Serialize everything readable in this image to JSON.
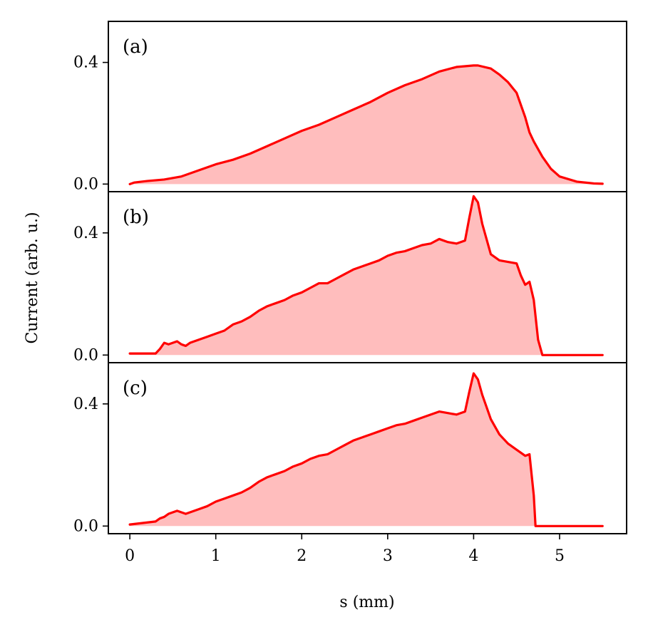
{
  "chart_data": {
    "type": "area",
    "xlabel": "s (mm)",
    "ylabel": "Current (arb. u.)",
    "xlim": [
      -0.25,
      5.78
    ],
    "x_ticks": [
      "0",
      "1",
      "2",
      "3",
      "4",
      "5"
    ],
    "x_tick_values": [
      0,
      1,
      2,
      3,
      4,
      5
    ],
    "y_ticks": [
      "0.0",
      "0.4"
    ],
    "y_tick_values": [
      0.0,
      0.4
    ],
    "colors": {
      "line": "#ff0000",
      "fill": "#ffbdbd"
    },
    "panels": [
      {
        "label": "(a)",
        "ylim": [
          -0.025,
          0.535
        ],
        "x": [
          0,
          0.05,
          0.2,
          0.4,
          0.6,
          0.8,
          1.0,
          1.2,
          1.4,
          1.6,
          1.8,
          2.0,
          2.2,
          2.4,
          2.6,
          2.8,
          3.0,
          3.2,
          3.4,
          3.6,
          3.8,
          4.0,
          4.05,
          4.2,
          4.3,
          4.4,
          4.5,
          4.6,
          4.65,
          4.7,
          4.8,
          4.9,
          5.0,
          5.2,
          5.4,
          5.5
        ],
        "y": [
          0.0,
          0.005,
          0.01,
          0.015,
          0.025,
          0.045,
          0.065,
          0.08,
          0.1,
          0.125,
          0.15,
          0.175,
          0.195,
          0.22,
          0.245,
          0.27,
          0.3,
          0.325,
          0.345,
          0.37,
          0.385,
          0.39,
          0.39,
          0.38,
          0.36,
          0.335,
          0.3,
          0.22,
          0.17,
          0.14,
          0.09,
          0.05,
          0.025,
          0.008,
          0.002,
          0.001
        ]
      },
      {
        "label": "(b)",
        "ylim": [
          -0.025,
          0.535
        ],
        "x": [
          0,
          0.3,
          0.35,
          0.4,
          0.45,
          0.5,
          0.55,
          0.6,
          0.65,
          0.7,
          0.8,
          0.9,
          1.0,
          1.1,
          1.2,
          1.3,
          1.4,
          1.5,
          1.6,
          1.7,
          1.8,
          1.9,
          2.0,
          2.1,
          2.2,
          2.3,
          2.4,
          2.5,
          2.6,
          2.7,
          2.8,
          2.9,
          3.0,
          3.1,
          3.2,
          3.3,
          3.4,
          3.5,
          3.6,
          3.7,
          3.8,
          3.9,
          3.95,
          4.0,
          4.05,
          4.1,
          4.15,
          4.2,
          4.3,
          4.4,
          4.5,
          4.55,
          4.6,
          4.65,
          4.7,
          4.75,
          4.8,
          5.0,
          5.5
        ],
        "y": [
          0.005,
          0.005,
          0.02,
          0.04,
          0.035,
          0.04,
          0.045,
          0.035,
          0.03,
          0.04,
          0.05,
          0.06,
          0.07,
          0.08,
          0.1,
          0.11,
          0.125,
          0.145,
          0.16,
          0.17,
          0.18,
          0.195,
          0.205,
          0.22,
          0.235,
          0.235,
          0.25,
          0.265,
          0.28,
          0.29,
          0.3,
          0.31,
          0.325,
          0.335,
          0.34,
          0.35,
          0.36,
          0.365,
          0.38,
          0.37,
          0.365,
          0.375,
          0.45,
          0.52,
          0.5,
          0.43,
          0.38,
          0.33,
          0.31,
          0.305,
          0.3,
          0.26,
          0.23,
          0.24,
          0.18,
          0.05,
          0.0,
          0.0,
          0.0
        ]
      },
      {
        "label": "(c)",
        "ylim": [
          -0.025,
          0.535
        ],
        "x": [
          0,
          0.3,
          0.35,
          0.4,
          0.45,
          0.5,
          0.55,
          0.6,
          0.65,
          0.7,
          0.8,
          0.9,
          1.0,
          1.1,
          1.2,
          1.3,
          1.4,
          1.5,
          1.6,
          1.7,
          1.8,
          1.9,
          2.0,
          2.1,
          2.2,
          2.3,
          2.4,
          2.5,
          2.6,
          2.7,
          2.8,
          2.9,
          3.0,
          3.1,
          3.2,
          3.3,
          3.4,
          3.5,
          3.6,
          3.7,
          3.8,
          3.9,
          3.95,
          4.0,
          4.05,
          4.1,
          4.15,
          4.2,
          4.3,
          4.4,
          4.5,
          4.55,
          4.6,
          4.65,
          4.7,
          4.72,
          4.8,
          5.0,
          5.5
        ],
        "y": [
          0.005,
          0.015,
          0.025,
          0.03,
          0.04,
          0.045,
          0.05,
          0.045,
          0.04,
          0.045,
          0.055,
          0.065,
          0.08,
          0.09,
          0.1,
          0.11,
          0.125,
          0.145,
          0.16,
          0.17,
          0.18,
          0.195,
          0.205,
          0.22,
          0.23,
          0.235,
          0.25,
          0.265,
          0.28,
          0.29,
          0.3,
          0.31,
          0.32,
          0.33,
          0.335,
          0.345,
          0.355,
          0.365,
          0.375,
          0.37,
          0.365,
          0.375,
          0.44,
          0.5,
          0.48,
          0.43,
          0.39,
          0.35,
          0.3,
          0.27,
          0.25,
          0.24,
          0.23,
          0.235,
          0.1,
          0.0,
          0.0,
          0.0,
          0.0
        ]
      }
    ]
  }
}
